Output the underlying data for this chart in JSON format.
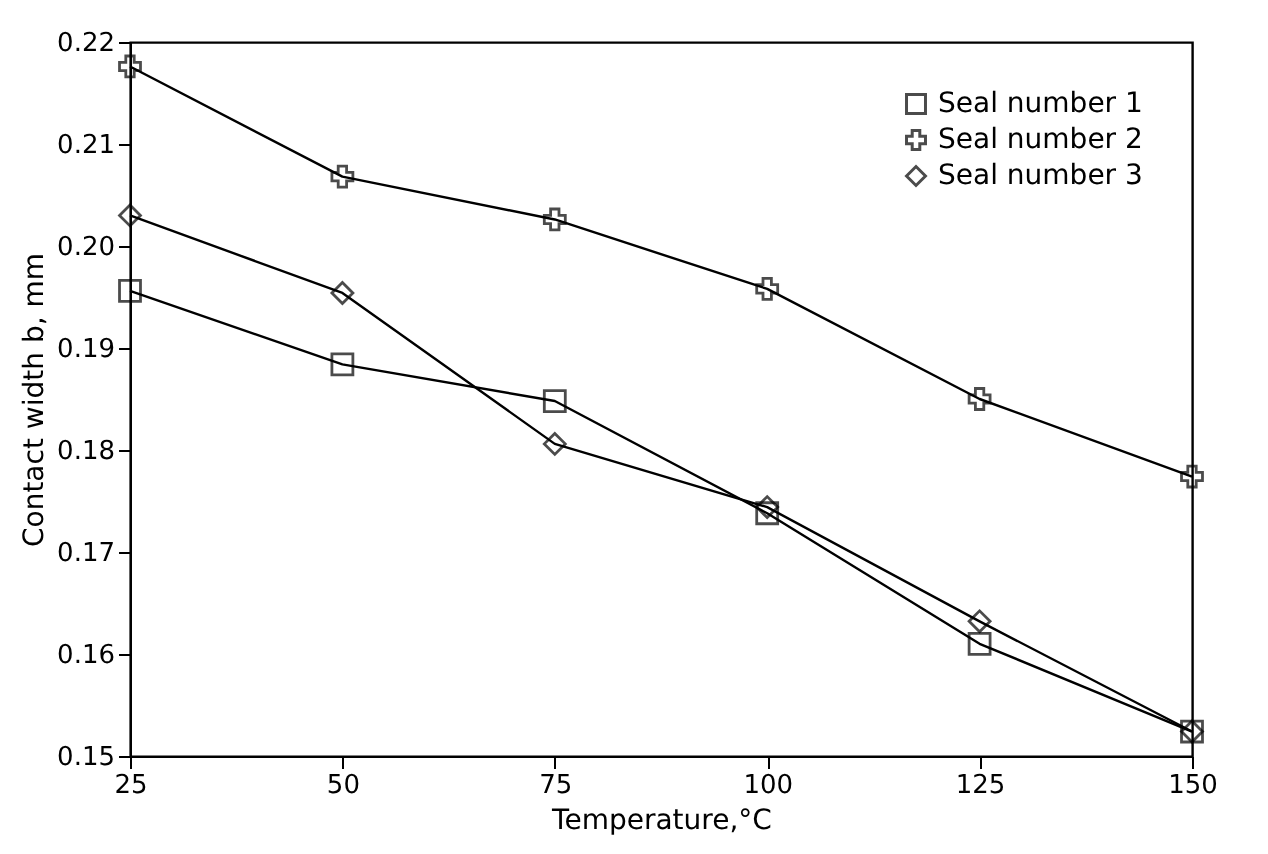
{
  "chart_data": {
    "type": "line",
    "xlabel": "Temperature,°C",
    "ylabel": "Contact width b, mm",
    "x": [
      25,
      50,
      75,
      100,
      125,
      150
    ],
    "series": [
      {
        "name": "Seal number 1",
        "color": "#000000",
        "marker": "square",
        "values": [
          0.1956,
          0.1884,
          0.1848,
          0.1738,
          0.161,
          0.1524
        ]
      },
      {
        "name": "Seal number 2",
        "color": "#000000",
        "marker": "cross",
        "values": [
          0.2176,
          0.2068,
          0.2026,
          0.1958,
          0.185,
          0.1774
        ]
      },
      {
        "name": "Seal number 3",
        "color": "#000000",
        "marker": "diamond",
        "values": [
          0.203,
          0.1954,
          0.1806,
          0.1744,
          0.1632,
          0.1524
        ]
      }
    ],
    "xlim": [
      25,
      150
    ],
    "xticks": [
      25,
      50,
      75,
      100,
      125,
      150
    ],
    "ylim": [
      0.15,
      0.22
    ],
    "yticks": [
      0.15,
      0.16,
      0.17,
      0.18,
      0.19,
      {
        "value": 0.2,
        "label": "0.20"
      },
      0.21,
      0.22
    ],
    "grid": false,
    "legend": "top right",
    "line_style": "solid"
  }
}
